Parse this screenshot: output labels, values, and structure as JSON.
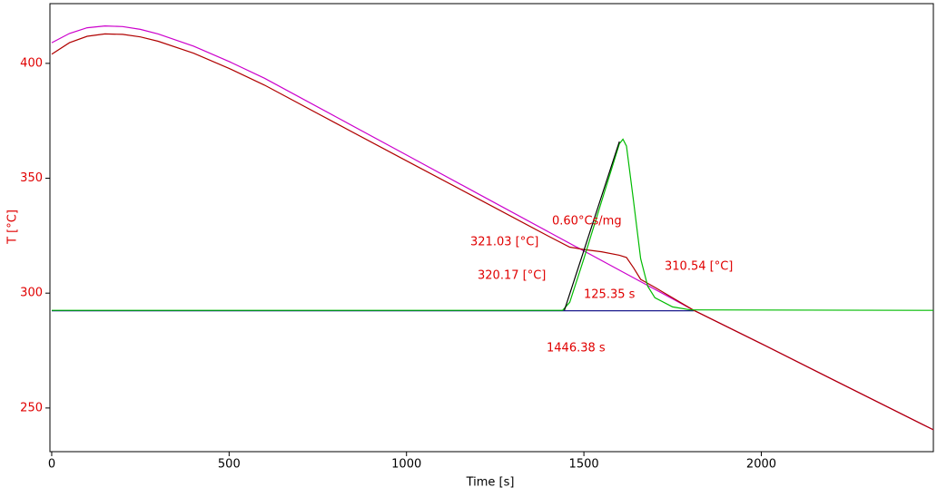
{
  "chart_data": {
    "type": "line",
    "xlabel": "Time [s]",
    "ylabel": "T  [°C]",
    "xlim": [
      -5,
      2485
    ],
    "ylim": [
      231,
      426
    ],
    "xticks": [
      0,
      500,
      1000,
      1500,
      2000
    ],
    "yticks": [
      250,
      300,
      350,
      400
    ],
    "series": [
      {
        "color": "#000080",
        "x": [
          0,
          1810
        ],
        "values": [
          292.3,
          292.3
        ]
      },
      {
        "color": "#cc00cc",
        "x": [
          0,
          50,
          100,
          150,
          200,
          250,
          300,
          400,
          500,
          600,
          800,
          1000,
          1200,
          1400,
          1600,
          1810,
          2000,
          2200,
          2485
        ],
        "values": [
          409,
          413,
          415.5,
          416.3,
          416,
          414.8,
          412.8,
          407.5,
          400.8,
          393.5,
          376.8,
          360.1,
          343.4,
          326.7,
          310,
          292.5,
          278,
          262.5,
          240.5
        ]
      },
      {
        "color": "#b00000",
        "x": [
          0,
          50,
          100,
          150,
          200,
          250,
          300,
          400,
          500,
          600,
          800,
          1000,
          1200,
          1400,
          1460,
          1500,
          1550,
          1600,
          1620,
          1640,
          1660,
          1700,
          1810,
          2000,
          2200,
          2485
        ],
        "values": [
          404,
          409,
          411.8,
          412.8,
          412.6,
          411.5,
          409.6,
          404.4,
          397.8,
          390.5,
          374,
          357.6,
          341.2,
          324.8,
          320,
          319,
          318,
          316.5,
          315.5,
          311,
          306,
          302.5,
          292.5,
          278,
          262.5,
          240.5
        ]
      },
      {
        "color": "#00bb00",
        "x": [
          0,
          1440,
          1460,
          1500,
          1550,
          1600,
          1610,
          1620,
          1640,
          1660,
          1680,
          1700,
          1750,
          1800,
          2485
        ],
        "values": [
          292.5,
          292.5,
          296,
          315,
          340,
          365,
          367,
          364,
          340,
          315,
          303,
          298,
          294,
          292.7,
          292.5
        ]
      },
      {
        "color": "#000000",
        "x": [
          1445,
          1600
        ],
        "values": [
          292.5,
          366
        ]
      }
    ],
    "annotations": [
      "0.60°Cs/mg",
      "321.03 [°C]",
      "320.17 [°C]",
      "125.35 s",
      "310.54 [°C]",
      "1446.38 s"
    ]
  }
}
